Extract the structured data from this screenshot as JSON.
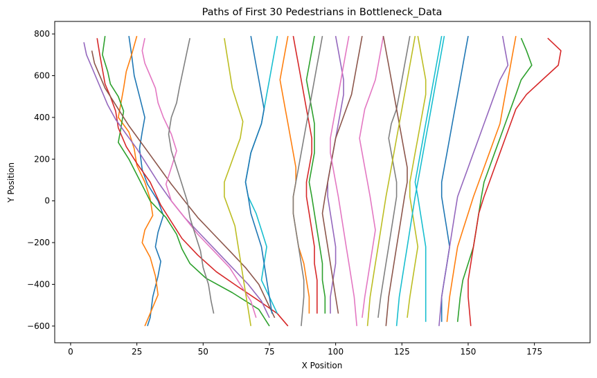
{
  "chart_data": {
    "type": "line",
    "title": "Paths of First 30 Pedestrians in Bottleneck_Data",
    "xlabel": "X Position",
    "ylabel": "Y Position",
    "xlim": [
      -6,
      196
    ],
    "ylim": [
      -680,
      860
    ],
    "xticks": [
      0,
      25,
      50,
      75,
      100,
      125,
      150,
      175
    ],
    "yticks": [
      -600,
      -400,
      -200,
      0,
      200,
      400,
      600,
      800
    ],
    "grid": false,
    "legend": "none",
    "colors": [
      "#1f77b4",
      "#ff7f0e",
      "#2ca02c",
      "#d62728",
      "#9467bd",
      "#8c564b",
      "#e377c2",
      "#7f7f7f",
      "#bcbd22",
      "#17becf"
    ],
    "series": [
      {
        "x": [
          22,
          23,
          24,
          26,
          27,
          28,
          27,
          26,
          27,
          29,
          33,
          35,
          33,
          32,
          34,
          33,
          31,
          30,
          29
        ],
        "y": [
          790,
          700,
          600,
          500,
          450,
          400,
          330,
          250,
          150,
          80,
          0,
          -70,
          -150,
          -220,
          -290,
          -360,
          -460,
          -560,
          -600
        ]
      },
      {
        "x": [
          25,
          23,
          21,
          20,
          19,
          18,
          22,
          24,
          25,
          28,
          30,
          31,
          28,
          27,
          30,
          32,
          33,
          30,
          28
        ],
        "y": [
          790,
          700,
          620,
          540,
          470,
          400,
          330,
          250,
          170,
          90,
          10,
          -70,
          -140,
          -200,
          -270,
          -360,
          -450,
          -540,
          -600
        ]
      },
      {
        "x": [
          13,
          12,
          14,
          15,
          18,
          20,
          19,
          18,
          22,
          26,
          30,
          36,
          40,
          42,
          45,
          51,
          61,
          71,
          75
        ],
        "y": [
          790,
          700,
          620,
          560,
          500,
          430,
          350,
          280,
          200,
          100,
          0,
          -80,
          -160,
          -230,
          -300,
          -370,
          -440,
          -520,
          -600
        ]
      },
      {
        "x": [
          10,
          11,
          12,
          13,
          15,
          17,
          18,
          21,
          25,
          30,
          34,
          38,
          42,
          48,
          55,
          63,
          70,
          78,
          82
        ],
        "y": [
          780,
          700,
          630,
          560,
          500,
          430,
          350,
          260,
          180,
          90,
          -20,
          -100,
          -180,
          -260,
          -340,
          -410,
          -470,
          -540,
          -600
        ]
      },
      {
        "x": [
          5,
          6,
          8,
          10,
          12,
          14,
          17,
          21,
          25,
          29,
          33,
          38,
          43,
          49,
          55,
          61,
          67,
          72,
          75
        ],
        "y": [
          760,
          700,
          640,
          580,
          520,
          460,
          390,
          320,
          250,
          170,
          90,
          0,
          -80,
          -160,
          -240,
          -320,
          -400,
          -480,
          -560
        ]
      },
      {
        "x": [
          8,
          9,
          11,
          13,
          16,
          19,
          22,
          26,
          30,
          34,
          38,
          43,
          48,
          54,
          60,
          66,
          71,
          74,
          77
        ],
        "y": [
          720,
          660,
          600,
          540,
          480,
          420,
          360,
          290,
          220,
          150,
          80,
          0,
          -80,
          -160,
          -240,
          -320,
          -400,
          -480,
          -560
        ]
      },
      {
        "x": [
          28,
          27,
          28,
          30,
          32,
          33,
          35,
          38,
          40,
          38,
          36,
          38,
          43,
          48,
          54,
          60,
          64,
          68,
          70
        ],
        "y": [
          780,
          720,
          660,
          600,
          540,
          470,
          400,
          320,
          240,
          160,
          80,
          0,
          -80,
          -160,
          -240,
          -320,
          -400,
          -480,
          -560
        ]
      },
      {
        "x": [
          45,
          44,
          43,
          42,
          41,
          40,
          38,
          37,
          38,
          40,
          42,
          44,
          45,
          47,
          49,
          50,
          52,
          53,
          54
        ],
        "y": [
          780,
          720,
          660,
          600,
          540,
          470,
          400,
          320,
          240,
          160,
          80,
          0,
          -80,
          -160,
          -240,
          -320,
          -400,
          -480,
          -540
        ]
      },
      {
        "x": [
          58,
          59,
          60,
          61,
          63,
          65,
          64,
          62,
          60,
          58,
          58,
          60,
          62,
          63,
          64,
          65,
          66,
          67,
          68
        ],
        "y": [
          780,
          700,
          620,
          540,
          460,
          380,
          300,
          230,
          160,
          90,
          20,
          -50,
          -120,
          -200,
          -280,
          -360,
          -440,
          -520,
          -600
        ]
      },
      {
        "x": [
          78,
          77,
          76,
          75,
          74,
          73,
          72,
          70,
          68,
          67,
          66,
          67,
          70,
          72,
          74,
          73,
          72,
          75,
          78
        ],
        "y": [
          790,
          720,
          650,
          580,
          510,
          440,
          370,
          300,
          230,
          160,
          90,
          20,
          -60,
          -140,
          -220,
          -300,
          -380,
          -460,
          -540
        ]
      },
      {
        "x": [
          68,
          69,
          70,
          71,
          72,
          73,
          72,
          70,
          68,
          67,
          66,
          67,
          68,
          70,
          72,
          73,
          74,
          75,
          76
        ],
        "y": [
          790,
          720,
          650,
          580,
          510,
          440,
          370,
          300,
          230,
          160,
          90,
          20,
          -60,
          -140,
          -220,
          -300,
          -380,
          -460,
          -540
        ]
      },
      {
        "x": [
          82,
          81,
          80,
          79,
          80,
          81,
          82,
          83,
          84,
          85,
          85,
          84,
          84,
          85,
          86,
          88,
          89,
          90,
          90
        ],
        "y": [
          790,
          720,
          650,
          580,
          510,
          440,
          370,
          300,
          230,
          160,
          90,
          20,
          -60,
          -140,
          -220,
          -300,
          -380,
          -460,
          -540
        ]
      },
      {
        "x": [
          92,
          91,
          90,
          89,
          90,
          91,
          92,
          92,
          92,
          91,
          90,
          91,
          92,
          93,
          94,
          95,
          95,
          96,
          96
        ],
        "y": [
          790,
          720,
          650,
          580,
          510,
          440,
          370,
          300,
          230,
          160,
          90,
          20,
          -60,
          -140,
          -220,
          -300,
          -380,
          -460,
          -540
        ]
      },
      {
        "x": [
          84,
          85,
          86,
          87,
          88,
          89,
          90,
          91,
          91,
          90,
          89,
          89,
          90,
          91,
          92,
          92,
          93,
          93,
          93
        ],
        "y": [
          790,
          720,
          650,
          580,
          510,
          440,
          370,
          300,
          230,
          160,
          90,
          20,
          -60,
          -140,
          -220,
          -300,
          -380,
          -460,
          -540
        ]
      },
      {
        "x": [
          100,
          101,
          102,
          103,
          103,
          102,
          101,
          100,
          99,
          98,
          97,
          97,
          98,
          99,
          100,
          100,
          99,
          98,
          98
        ],
        "y": [
          790,
          720,
          650,
          580,
          510,
          440,
          370,
          300,
          230,
          160,
          90,
          20,
          -60,
          -140,
          -220,
          -300,
          -380,
          -460,
          -540
        ]
      },
      {
        "x": [
          110,
          109,
          108,
          107,
          106,
          104,
          102,
          100,
          99,
          98,
          97,
          96,
          95,
          96,
          97,
          98,
          99,
          100,
          101
        ],
        "y": [
          790,
          720,
          650,
          580,
          510,
          440,
          370,
          300,
          230,
          160,
          90,
          20,
          -60,
          -140,
          -220,
          -300,
          -380,
          -460,
          -540
        ]
      },
      {
        "x": [
          118,
          117,
          116,
          115,
          113,
          111,
          110,
          109,
          110,
          111,
          112,
          113,
          114,
          115,
          114,
          113,
          112,
          111,
          110
        ],
        "y": [
          790,
          720,
          650,
          580,
          510,
          440,
          370,
          300,
          230,
          160,
          90,
          20,
          -60,
          -140,
          -220,
          -300,
          -380,
          -460,
          -560
        ]
      },
      {
        "x": [
          128,
          127,
          126,
          125,
          124,
          123,
          121,
          120,
          121,
          122,
          123,
          123,
          122,
          121,
          120,
          119,
          118,
          117,
          116
        ],
        "y": [
          790,
          720,
          650,
          580,
          510,
          440,
          370,
          300,
          230,
          160,
          90,
          20,
          -60,
          -140,
          -220,
          -300,
          -380,
          -460,
          -560
        ]
      },
      {
        "x": [
          131,
          132,
          133,
          134,
          134,
          133,
          132,
          131,
          130,
          129,
          128,
          128,
          129,
          130,
          131,
          130,
          129,
          128,
          127
        ],
        "y": [
          790,
          720,
          650,
          580,
          510,
          440,
          370,
          300,
          230,
          160,
          90,
          20,
          -60,
          -140,
          -220,
          -300,
          -380,
          -460,
          -560
        ]
      },
      {
        "x": [
          140,
          139,
          138,
          137,
          136,
          135,
          134,
          133,
          132,
          131,
          130,
          131,
          132,
          133,
          134,
          134,
          134,
          134,
          134
        ],
        "y": [
          790,
          720,
          650,
          580,
          510,
          440,
          370,
          300,
          230,
          160,
          90,
          20,
          -60,
          -140,
          -220,
          -300,
          -380,
          -460,
          -580
        ]
      },
      {
        "x": [
          150,
          149,
          148,
          147,
          146,
          145,
          144,
          143,
          142,
          141,
          140,
          140,
          141,
          142,
          143,
          142,
          141,
          140,
          140
        ],
        "y": [
          790,
          720,
          650,
          580,
          510,
          440,
          370,
          300,
          230,
          160,
          90,
          20,
          -60,
          -140,
          -220,
          -300,
          -380,
          -460,
          -580
        ]
      },
      {
        "x": [
          168,
          167,
          166,
          165,
          164,
          163,
          162,
          160,
          158,
          156,
          154,
          152,
          150,
          148,
          146,
          145,
          144,
          143,
          142
        ],
        "y": [
          790,
          720,
          650,
          580,
          510,
          440,
          370,
          300,
          230,
          160,
          90,
          20,
          -60,
          -140,
          -220,
          -300,
          -380,
          -460,
          -580
        ]
      },
      {
        "x": [
          170,
          172,
          174,
          170,
          168,
          166,
          164,
          162,
          160,
          158,
          156,
          155,
          154,
          153,
          152,
          150,
          148,
          147,
          146
        ],
        "y": [
          780,
          720,
          650,
          580,
          510,
          440,
          370,
          300,
          230,
          160,
          90,
          20,
          -60,
          -140,
          -220,
          -300,
          -380,
          -460,
          -580
        ]
      },
      {
        "x": [
          180,
          185,
          184,
          178,
          172,
          168,
          166,
          164,
          162,
          160,
          158,
          156,
          154,
          153,
          152,
          151,
          150,
          150,
          151
        ],
        "y": [
          780,
          720,
          650,
          580,
          510,
          440,
          370,
          300,
          230,
          160,
          90,
          20,
          -60,
          -140,
          -220,
          -300,
          -380,
          -460,
          -600
        ]
      },
      {
        "x": [
          163,
          164,
          165,
          162,
          160,
          158,
          156,
          154,
          152,
          150,
          148,
          146,
          145,
          144,
          143,
          142,
          141,
          140,
          139
        ],
        "y": [
          790,
          720,
          650,
          580,
          510,
          440,
          370,
          300,
          230,
          160,
          90,
          20,
          -60,
          -140,
          -220,
          -300,
          -380,
          -460,
          -600
        ]
      },
      {
        "x": [
          118,
          119,
          120,
          121,
          122,
          123,
          124,
          125,
          126,
          127,
          127,
          126,
          125,
          124,
          123,
          122,
          121,
          120,
          119
        ],
        "y": [
          790,
          720,
          650,
          580,
          510,
          440,
          370,
          300,
          230,
          160,
          90,
          20,
          -60,
          -140,
          -220,
          -300,
          -380,
          -460,
          -600
        ]
      },
      {
        "x": [
          105,
          104,
          103,
          102,
          101,
          100,
          99,
          98,
          98,
          99,
          100,
          101,
          102,
          103,
          104,
          105,
          106,
          107,
          108
        ],
        "y": [
          790,
          720,
          650,
          580,
          510,
          440,
          370,
          300,
          230,
          160,
          90,
          20,
          -60,
          -140,
          -220,
          -300,
          -380,
          -460,
          -600
        ]
      },
      {
        "x": [
          95,
          94,
          93,
          92,
          91,
          90,
          89,
          88,
          87,
          86,
          85,
          84,
          84,
          85,
          86,
          87,
          88,
          88,
          87
        ],
        "y": [
          790,
          720,
          650,
          580,
          510,
          440,
          370,
          300,
          230,
          160,
          90,
          20,
          -60,
          -140,
          -220,
          -300,
          -380,
          -460,
          -600
        ]
      },
      {
        "x": [
          130,
          129,
          128,
          127,
          126,
          125,
          124,
          123,
          122,
          121,
          120,
          119,
          118,
          117,
          116,
          115,
          114,
          113,
          112
        ],
        "y": [
          790,
          720,
          650,
          580,
          510,
          440,
          370,
          300,
          230,
          160,
          90,
          20,
          -60,
          -140,
          -220,
          -300,
          -380,
          -460,
          -600
        ]
      },
      {
        "x": [
          141,
          140,
          139,
          138,
          137,
          136,
          135,
          134,
          133,
          132,
          131,
          130,
          129,
          128,
          127,
          126,
          125,
          124,
          123
        ],
        "y": [
          790,
          720,
          650,
          580,
          510,
          440,
          370,
          300,
          230,
          160,
          90,
          20,
          -60,
          -140,
          -220,
          -300,
          -380,
          -460,
          -600
        ]
      }
    ]
  }
}
